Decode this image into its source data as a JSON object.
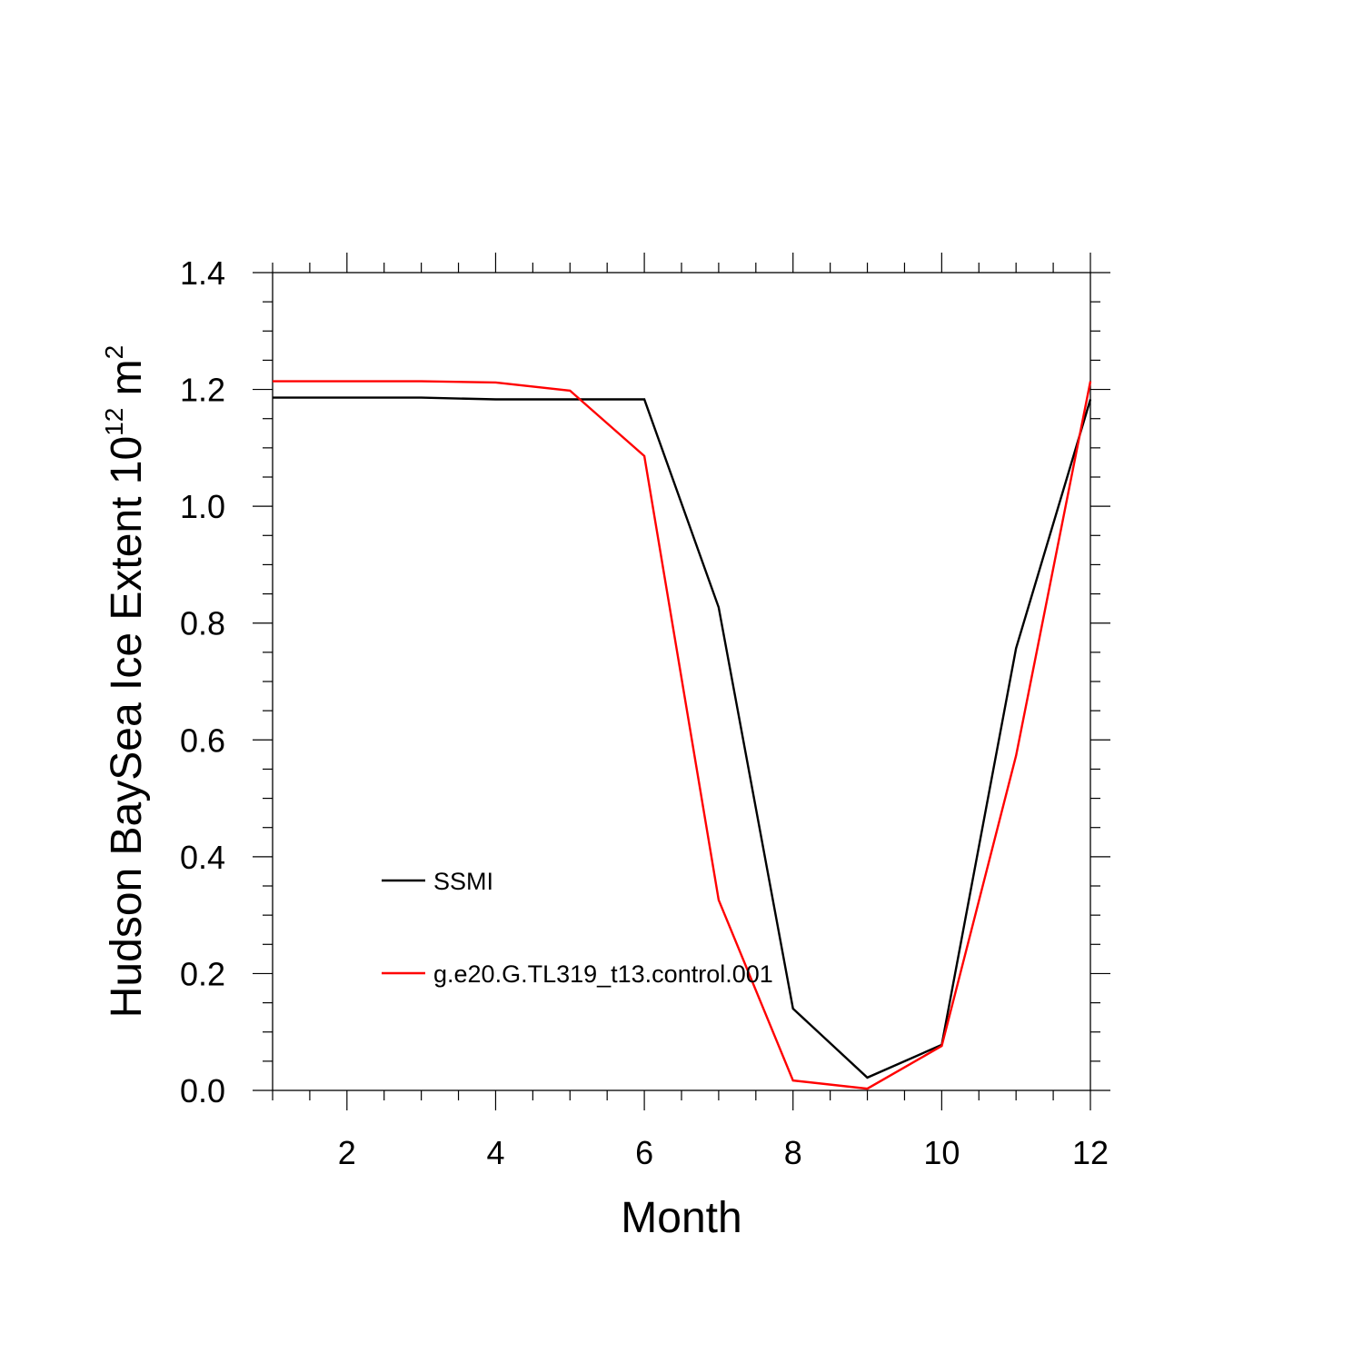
{
  "chart_data": {
    "type": "line",
    "title": "",
    "xlabel": "Month",
    "ylabel": {
      "prefix": "Hudson BaySea Ice Extent 10",
      "exponent": "12",
      "unit": " m",
      "unit_exponent": "2"
    },
    "xlim": [
      1,
      12
    ],
    "ylim": [
      0.0,
      1.4
    ],
    "x_ticks": [
      2,
      4,
      6,
      8,
      10,
      12
    ],
    "x_tick_labels": [
      "2",
      "4",
      "6",
      "8",
      "10",
      "12"
    ],
    "y_ticks": [
      0.0,
      0.2,
      0.4,
      0.6,
      0.8,
      1.0,
      1.2,
      1.4
    ],
    "y_tick_labels": [
      "0.0",
      "0.2",
      "0.4",
      "0.6",
      "0.8",
      "1.0",
      "1.2",
      "1.4"
    ],
    "grid": false,
    "legend_placement": "lower-left inside",
    "x": [
      1,
      2,
      3,
      4,
      5,
      6,
      7,
      8,
      9,
      10,
      11,
      12
    ],
    "series": [
      {
        "name": "SSMI",
        "color": "#000000",
        "values": [
          1.186,
          1.186,
          1.186,
          1.183,
          1.183,
          1.183,
          0.827,
          0.14,
          0.022,
          0.078,
          0.757,
          1.183
        ]
      },
      {
        "name": "g.e20.G.TL319_t13.control.001",
        "color": "#ff0000",
        "values": [
          1.214,
          1.214,
          1.214,
          1.212,
          1.198,
          1.086,
          0.326,
          0.017,
          0.003,
          0.076,
          0.573,
          1.214
        ]
      }
    ]
  }
}
